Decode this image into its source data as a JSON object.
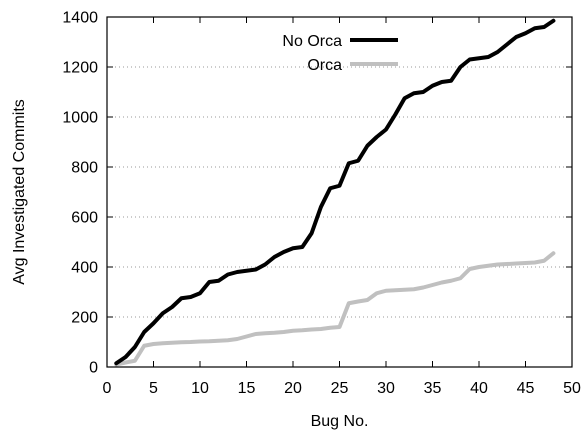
{
  "chart_data": {
    "type": "line",
    "xlabel": "Bug No.",
    "ylabel": "Avg Investigated Commits",
    "xlim": [
      0,
      50
    ],
    "ylim": [
      0,
      1400
    ],
    "xticks": [
      0,
      5,
      10,
      15,
      20,
      25,
      30,
      35,
      40,
      45,
      50
    ],
    "yticks": [
      0,
      200,
      400,
      600,
      800,
      1000,
      1200,
      1400
    ],
    "grid": "horizontal dotted",
    "legend": "top-center",
    "series": [
      {
        "name": "No Orca",
        "color": "#000000",
        "points": [
          [
            1,
            15
          ],
          [
            2,
            40
          ],
          [
            3,
            80
          ],
          [
            4,
            140
          ],
          [
            5,
            175
          ],
          [
            6,
            215
          ],
          [
            7,
            240
          ],
          [
            8,
            275
          ],
          [
            9,
            280
          ],
          [
            10,
            295
          ],
          [
            11,
            340
          ],
          [
            12,
            345
          ],
          [
            13,
            370
          ],
          [
            14,
            380
          ],
          [
            15,
            385
          ],
          [
            16,
            390
          ],
          [
            17,
            410
          ],
          [
            18,
            440
          ],
          [
            19,
            460
          ],
          [
            20,
            475
          ],
          [
            21,
            480
          ],
          [
            22,
            535
          ],
          [
            23,
            640
          ],
          [
            24,
            715
          ],
          [
            25,
            725
          ],
          [
            26,
            815
          ],
          [
            27,
            825
          ],
          [
            28,
            885
          ],
          [
            29,
            920
          ],
          [
            30,
            950
          ],
          [
            31,
            1010
          ],
          [
            32,
            1075
          ],
          [
            33,
            1095
          ],
          [
            34,
            1100
          ],
          [
            35,
            1125
          ],
          [
            36,
            1140
          ],
          [
            37,
            1145
          ],
          [
            38,
            1200
          ],
          [
            39,
            1230
          ],
          [
            40,
            1235
          ],
          [
            41,
            1240
          ],
          [
            42,
            1260
          ],
          [
            43,
            1290
          ],
          [
            44,
            1320
          ],
          [
            45,
            1335
          ],
          [
            46,
            1355
          ],
          [
            47,
            1360
          ],
          [
            48,
            1385
          ]
        ]
      },
      {
        "name": "Orca",
        "color": "#c0c0c0",
        "points": [
          [
            1,
            10
          ],
          [
            2,
            18
          ],
          [
            3,
            25
          ],
          [
            4,
            85
          ],
          [
            5,
            92
          ],
          [
            6,
            95
          ],
          [
            7,
            97
          ],
          [
            8,
            99
          ],
          [
            9,
            100
          ],
          [
            10,
            102
          ],
          [
            11,
            103
          ],
          [
            12,
            105
          ],
          [
            13,
            107
          ],
          [
            14,
            112
          ],
          [
            15,
            122
          ],
          [
            16,
            132
          ],
          [
            17,
            135
          ],
          [
            18,
            137
          ],
          [
            19,
            140
          ],
          [
            20,
            145
          ],
          [
            21,
            147
          ],
          [
            22,
            150
          ],
          [
            23,
            152
          ],
          [
            24,
            157
          ],
          [
            25,
            160
          ],
          [
            26,
            255
          ],
          [
            27,
            262
          ],
          [
            28,
            268
          ],
          [
            29,
            295
          ],
          [
            30,
            305
          ],
          [
            31,
            307
          ],
          [
            32,
            309
          ],
          [
            33,
            311
          ],
          [
            34,
            318
          ],
          [
            35,
            328
          ],
          [
            36,
            338
          ],
          [
            37,
            345
          ],
          [
            38,
            355
          ],
          [
            39,
            392
          ],
          [
            40,
            400
          ],
          [
            41,
            405
          ],
          [
            42,
            410
          ],
          [
            43,
            412
          ],
          [
            44,
            414
          ],
          [
            45,
            416
          ],
          [
            46,
            418
          ],
          [
            47,
            425
          ],
          [
            48,
            455
          ]
        ]
      }
    ]
  }
}
